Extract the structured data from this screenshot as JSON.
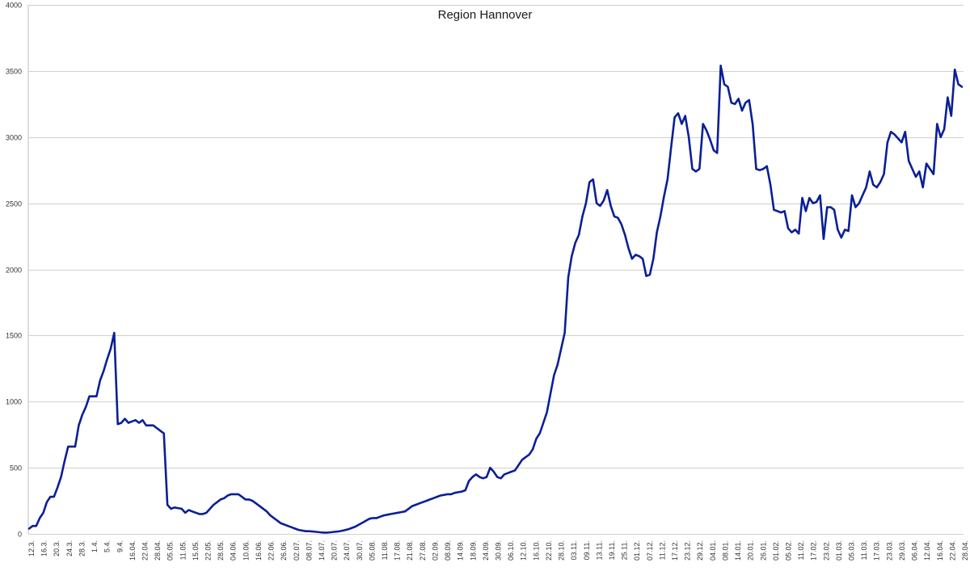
{
  "chart_data": {
    "type": "line",
    "title": "Region Hannover",
    "xlabel": "",
    "ylabel": "",
    "ylim": [
      0,
      4000
    ],
    "yticks": [
      0,
      500,
      1000,
      1500,
      2000,
      2500,
      3000,
      3500,
      4000
    ],
    "grid": "horizontal",
    "legend": "none",
    "line_color": "#0a1f96",
    "grid_color": "#d4d0c4",
    "x_tick_labels": [
      "12.3.",
      "16.3.",
      "20.3.",
      "24.3.",
      "28.3.",
      "1.4.",
      "5.4.",
      "9.4.",
      "16.04.",
      "22.04.",
      "28.04.",
      "05.05.",
      "11.05.",
      "15.05.",
      "22.05.",
      "28.05.",
      "04.06.",
      "10.06.",
      "16.06.",
      "22.06.",
      "26.06.",
      "02.07.",
      "08.07.",
      "14.07.",
      "20.07.",
      "24.07.",
      "30.07.",
      "05.08.",
      "11.08.",
      "17.08.",
      "21.08.",
      "27.08.",
      "02.09.",
      "08.09.",
      "14.09.",
      "18.09.",
      "24.09.",
      "30.09.",
      "06.10.",
      "12.10.",
      "16.10.",
      "22.10.",
      "28.10.",
      "03.11.",
      "09.11.",
      "13.11.",
      "19.11.",
      "25.11.",
      "01.12.",
      "07.12.",
      "11.12.",
      "17.12.",
      "23.12.",
      "29.12.",
      "04.01.",
      "08.01.",
      "14.01.",
      "20.01.",
      "26.01.",
      "01.02.",
      "05.02.",
      "11.02.",
      "17.02.",
      "23.02.",
      "01.03.",
      "05.03.",
      "11.03.",
      "17.03.",
      "23.03.",
      "29.03.",
      "06.04.",
      "12.04.",
      "16.04.",
      "22.04.",
      "28.04."
    ],
    "series": [
      {
        "values": [
          40,
          60,
          60,
          120,
          160,
          240,
          280,
          280,
          350,
          430,
          550,
          660,
          660,
          660,
          820,
          900,
          960,
          1040,
          1040,
          1040,
          1160,
          1230,
          1320,
          1400,
          1520,
          830,
          840,
          870,
          840,
          850,
          860,
          840,
          860,
          820,
          820,
          820,
          800,
          780,
          760,
          220,
          190,
          200,
          195,
          190,
          160,
          180,
          170,
          160,
          150,
          150,
          160,
          190,
          220,
          240,
          260,
          270,
          290,
          300,
          300,
          300,
          280,
          260,
          260,
          250,
          230,
          210,
          190,
          170,
          140,
          120,
          100,
          80,
          70,
          60,
          50,
          40,
          30,
          25,
          20,
          20,
          18,
          15,
          12,
          10,
          10,
          12,
          15,
          18,
          22,
          28,
          35,
          45,
          55,
          70,
          85,
          100,
          115,
          120,
          120,
          130,
          140,
          145,
          150,
          155,
          160,
          165,
          170,
          190,
          210,
          220,
          230,
          240,
          250,
          260,
          270,
          280,
          290,
          295,
          300,
          300,
          310,
          315,
          320,
          330,
          400,
          430,
          450,
          430,
          420,
          430,
          500,
          470,
          430,
          420,
          450,
          460,
          470,
          480,
          520,
          560,
          580,
          600,
          640,
          720,
          760,
          840,
          920,
          1060,
          1200,
          1280,
          1400,
          1520,
          1940,
          2100,
          2200,
          2260,
          2400,
          2500,
          2660,
          2680,
          2500,
          2480,
          2520,
          2600,
          2480,
          2400,
          2390,
          2340,
          2260,
          2160,
          2080,
          2110,
          2100,
          2080,
          1950,
          1960,
          2080,
          2280,
          2400,
          2550,
          2680,
          2920,
          3150,
          3180,
          3100,
          3160,
          3000,
          2760,
          2740,
          2760,
          3100,
          3050,
          2980,
          2900,
          2880,
          3540,
          3400,
          3380,
          3260,
          3250,
          3290,
          3200,
          3260,
          3280,
          3100,
          2760,
          2750,
          2760,
          2780,
          2640,
          2450,
          2440,
          2430,
          2440,
          2310,
          2280,
          2300,
          2270,
          2540,
          2440,
          2540,
          2500,
          2510,
          2560,
          2230,
          2470,
          2470,
          2450,
          2300,
          2240,
          2300,
          2290,
          2560,
          2470,
          2500,
          2560,
          2620,
          2740,
          2640,
          2620,
          2660,
          2720,
          2960,
          3040,
          3020,
          2990,
          2960,
          3040,
          2820,
          2760,
          2700,
          2740,
          2620,
          2800,
          2760,
          2720,
          3100,
          3000,
          3060,
          3300,
          3160,
          3510,
          3400,
          3380
        ]
      }
    ]
  }
}
